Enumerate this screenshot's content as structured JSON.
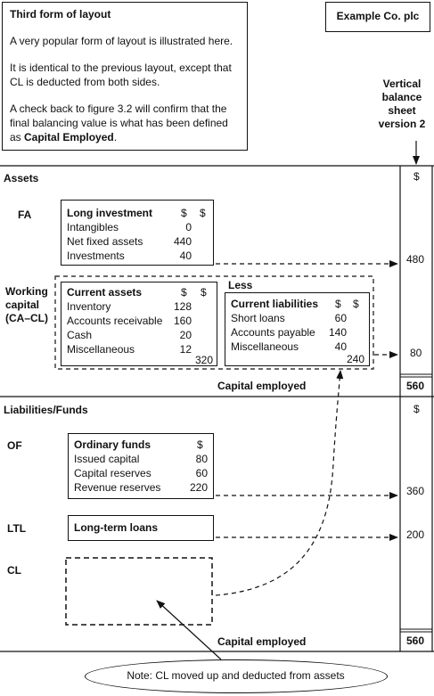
{
  "header": {
    "intro": {
      "title": "Third form of layout",
      "p1": "A very popular form of layout is illustrated here.",
      "p2a": "It is identical to the previous layout, except that",
      "p2b": "CL is deducted from both sides.",
      "p3a": "A check back to figure 3.2 will confirm that the",
      "p3b": "final balancing value is what has been defined",
      "p3c_prefix": "as ",
      "p3c_bold": "Capital Employed",
      "p3c_suffix": "."
    },
    "company": "Example Co. plc",
    "vertical_label": [
      "Vertical",
      "balance",
      "sheet",
      "version 2"
    ]
  },
  "assets": {
    "section_label": "Assets",
    "currency": "$",
    "fa_label": "FA",
    "long_investment": {
      "title": "Long investment",
      "col1": "$",
      "col2": "$",
      "items": [
        {
          "label": "Intangibles",
          "value": "0"
        },
        {
          "label": "Net fixed assets",
          "value": "440"
        },
        {
          "label": "Investments",
          "value": "40"
        }
      ]
    },
    "fa_total": "480",
    "wc_label": [
      "Working",
      "capital",
      "(CA–CL)"
    ],
    "current_assets": {
      "title": "Current assets",
      "col1": "$",
      "col2": "$",
      "items": [
        {
          "label": "Inventory",
          "value": "128"
        },
        {
          "label": "Accounts receivable",
          "value": "160"
        },
        {
          "label": "Cash",
          "value": "20"
        },
        {
          "label": "Miscellaneous",
          "value": "12"
        }
      ],
      "total": "320"
    },
    "less_label": "Less",
    "current_liabilities": {
      "title": "Current liabilities",
      "col1": "$",
      "col2": "$",
      "items": [
        {
          "label": "Short loans",
          "value": "60"
        },
        {
          "label": "Accounts payable",
          "value": "140"
        },
        {
          "label": "Miscellaneous",
          "value": "40"
        }
      ],
      "total": "240"
    },
    "wc_total": "80",
    "capital_employed_label": "Capital employed",
    "capital_employed_total": "560"
  },
  "liabilities": {
    "section_label": "Liabilities/Funds",
    "currency": "$",
    "of_label": "OF",
    "ordinary_funds": {
      "title": "Ordinary funds",
      "col": "$",
      "items": [
        {
          "label": "Issued capital",
          "value": "80"
        },
        {
          "label": "Capital reserves",
          "value": "60"
        },
        {
          "label": "Revenue reserves",
          "value": "220"
        }
      ]
    },
    "of_total": "360",
    "ltl_label": "LTL",
    "long_term_loans": "Long-term loans",
    "ltl_total": "200",
    "cl_label": "CL",
    "capital_employed_label": "Capital employed",
    "capital_employed_total": "560"
  },
  "note": "Note: CL moved up and deducted from assets"
}
